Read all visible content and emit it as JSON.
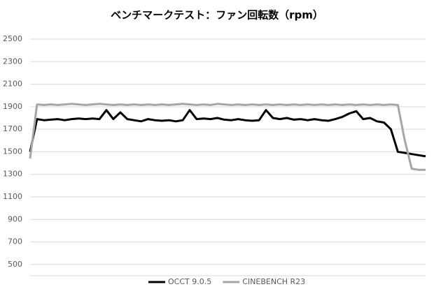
{
  "chart_data": {
    "type": "line",
    "title": "ベンチマークテスト：ファン回転数（rpm）",
    "series": [
      {
        "name": "OCCT 9.0.5",
        "color": "#000000",
        "values": [
          1500,
          1790,
          1780,
          1785,
          1790,
          1780,
          1790,
          1795,
          1790,
          1795,
          1790,
          1870,
          1790,
          1850,
          1790,
          1780,
          1770,
          1790,
          1780,
          1775,
          1780,
          1770,
          1780,
          1870,
          1790,
          1795,
          1790,
          1800,
          1785,
          1780,
          1790,
          1780,
          1775,
          1780,
          1870,
          1800,
          1790,
          1800,
          1785,
          1790,
          1780,
          1790,
          1780,
          1775,
          1790,
          1810,
          1840,
          1860,
          1790,
          1800,
          1770,
          1760,
          1700,
          1500,
          1490,
          1480,
          1470,
          1460
        ]
      },
      {
        "name": "CINEBENCH R23",
        "color": "#a6a6a6",
        "values": [
          1440,
          1920,
          1915,
          1920,
          1915,
          1920,
          1925,
          1920,
          1915,
          1920,
          1925,
          1920,
          1915,
          1920,
          1915,
          1920,
          1915,
          1920,
          1915,
          1920,
          1915,
          1920,
          1925,
          1920,
          1915,
          1920,
          1915,
          1925,
          1920,
          1915,
          1920,
          1915,
          1920,
          1915,
          1920,
          1915,
          1920,
          1915,
          1920,
          1915,
          1920,
          1915,
          1920,
          1915,
          1920,
          1915,
          1920,
          1915,
          1920,
          1915,
          1920,
          1915,
          1920,
          1915,
          1600,
          1350,
          1340,
          1340
        ]
      }
    ],
    "ylim": [
      400,
      2500
    ],
    "yticks": [
      500,
      700,
      900,
      1100,
      1300,
      1500,
      1700,
      1900,
      2100,
      2300,
      2500
    ],
    "grid": true,
    "legend": "bottom"
  }
}
